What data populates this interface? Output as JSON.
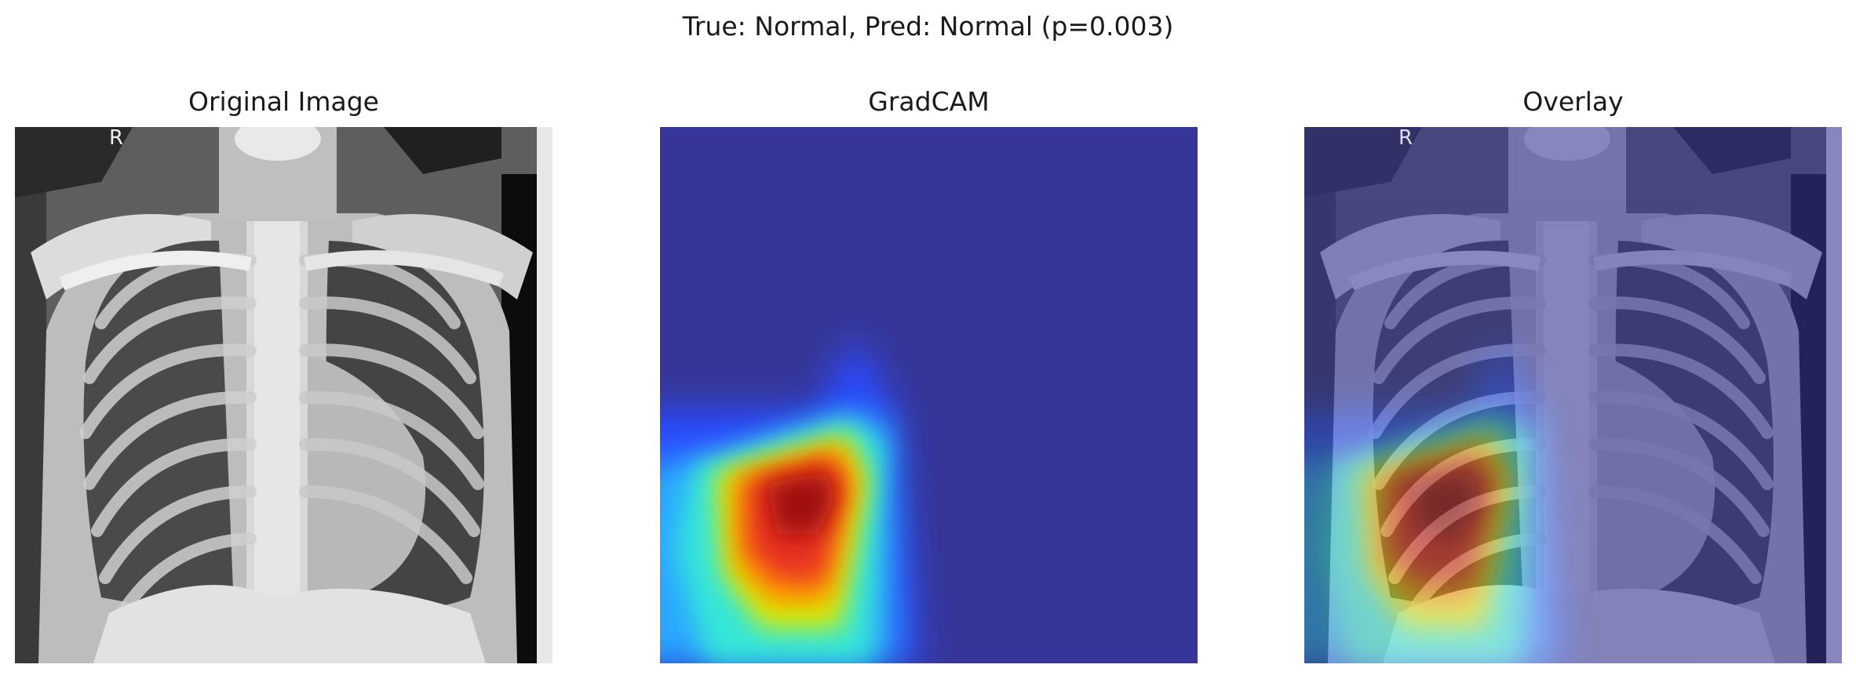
{
  "figure": {
    "suptitle": "True: Normal, Pred: Normal (p=0.003)"
  },
  "panels": [
    {
      "title": "Original Image",
      "image": "chest-xray"
    },
    {
      "title": "GradCAM",
      "image": "gradcam-heatmap",
      "colormap": "jet"
    },
    {
      "title": "Overlay",
      "image": "xray-with-heatmap-overlay",
      "overlay_alpha": 0.5
    }
  ],
  "xray_marker": "R"
}
